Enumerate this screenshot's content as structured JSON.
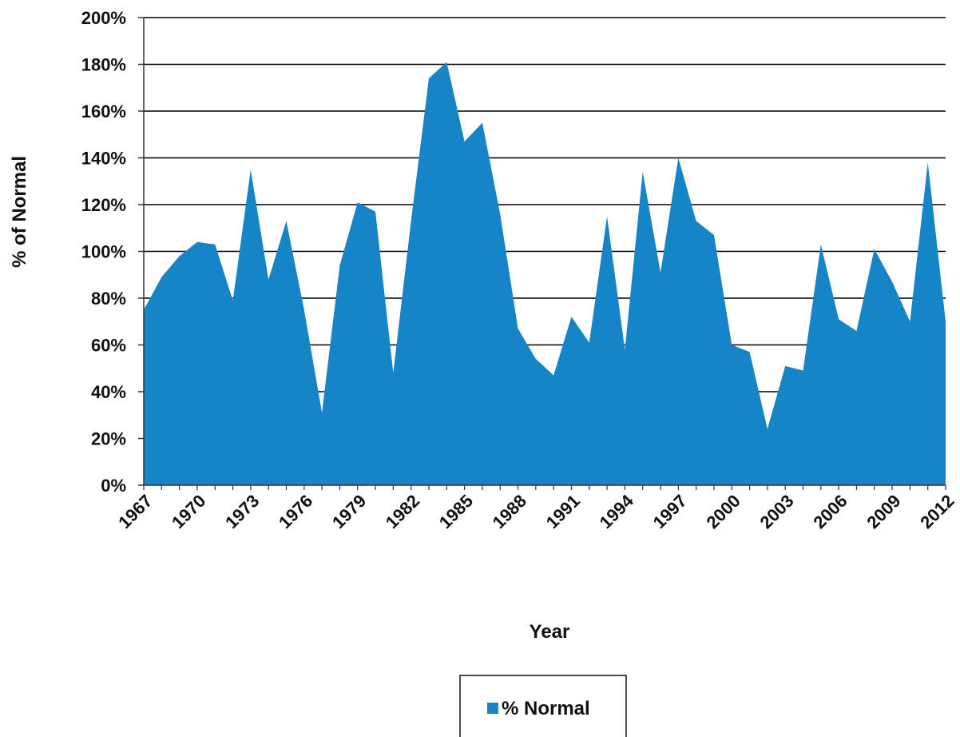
{
  "chart_data": {
    "type": "area",
    "title": "",
    "xlabel": "Year",
    "ylabel": "% of Normal",
    "x": [
      1967,
      1968,
      1969,
      1970,
      1971,
      1972,
      1973,
      1974,
      1975,
      1976,
      1977,
      1978,
      1979,
      1980,
      1981,
      1982,
      1983,
      1984,
      1985,
      1986,
      1987,
      1988,
      1989,
      1990,
      1991,
      1992,
      1993,
      1994,
      1995,
      1996,
      1997,
      1998,
      1999,
      2000,
      2001,
      2002,
      2003,
      2004,
      2005,
      2006,
      2007,
      2008,
      2009,
      2010,
      2011,
      2012
    ],
    "series": [
      {
        "name": "% Normal",
        "values": [
          75,
          89,
          98,
          104,
          103,
          79,
          135,
          88,
          113,
          75,
          31,
          94,
          121,
          117,
          48,
          113,
          174,
          181,
          147,
          155,
          116,
          67,
          54,
          47,
          72,
          61,
          115,
          58,
          134,
          91,
          140,
          113,
          107,
          60,
          57,
          24,
          51,
          49,
          103,
          71,
          66,
          101,
          87,
          70,
          138,
          70
        ]
      }
    ],
    "xticks": [
      "1967",
      "1970",
      "1973",
      "1976",
      "1979",
      "1982",
      "1985",
      "1988",
      "1991",
      "1994",
      "1997",
      "2000",
      "2003",
      "2006",
      "2009",
      "2012"
    ],
    "yticks": [
      "0%",
      "20%",
      "40%",
      "60%",
      "80%",
      "100%",
      "120%",
      "140%",
      "160%",
      "180%",
      "200%"
    ],
    "ylim": [
      0,
      200
    ],
    "grid": true,
    "legend": {
      "position": "bottom",
      "entries": [
        "% Normal"
      ]
    },
    "colors": {
      "area": "#1585C8",
      "grid": "#000000",
      "text": "#111111"
    }
  }
}
